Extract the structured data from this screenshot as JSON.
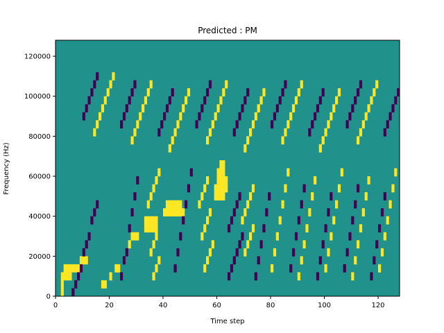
{
  "chart_data": {
    "type": "heatmap",
    "title": "Predicted : PM",
    "xlabel": "Time step",
    "ylabel": "Frequency (Hz)",
    "xlim": [
      0,
      128
    ],
    "ylim": [
      0,
      128000
    ],
    "x_ticks": [
      0,
      20,
      40,
      60,
      80,
      100,
      120
    ],
    "y_ticks": [
      0,
      20000,
      40000,
      60000,
      80000,
      100000,
      120000
    ],
    "x_tick_labels": [
      "0",
      "20",
      "40",
      "60",
      "80",
      "100",
      "120"
    ],
    "y_tick_labels": [
      "0",
      "20000",
      "40000",
      "60000",
      "80000",
      "100000",
      "120000"
    ],
    "rows": 32,
    "cols": 128,
    "colormap": "viridis",
    "colors": {
      "background": "#21918c",
      "high": "#fde725",
      "low": "#440154"
    },
    "high_cells": [
      [
        2,
        0
      ],
      [
        2,
        1
      ],
      [
        2,
        2
      ],
      [
        3,
        2
      ],
      [
        4,
        2
      ],
      [
        5,
        2
      ],
      [
        3,
        3
      ],
      [
        4,
        3
      ],
      [
        5,
        3
      ],
      [
        6,
        3
      ],
      [
        7,
        3
      ],
      [
        8,
        3
      ],
      [
        9,
        4
      ],
      [
        10,
        4
      ],
      [
        11,
        4
      ],
      [
        17,
        1
      ],
      [
        18,
        1
      ],
      [
        20,
        2
      ],
      [
        22,
        3
      ],
      [
        23,
        3
      ],
      [
        27,
        6
      ],
      [
        28,
        7
      ],
      [
        29,
        7
      ],
      [
        30,
        7
      ],
      [
        33,
        8
      ],
      [
        34,
        8
      ],
      [
        35,
        8
      ],
      [
        36,
        8
      ],
      [
        37,
        8
      ],
      [
        33,
        9
      ],
      [
        34,
        9
      ],
      [
        35,
        9
      ],
      [
        36,
        9
      ],
      [
        37,
        9
      ],
      [
        40,
        10
      ],
      [
        41,
        10
      ],
      [
        42,
        10
      ],
      [
        43,
        10
      ],
      [
        44,
        10
      ],
      [
        45,
        10
      ],
      [
        46,
        10
      ],
      [
        47,
        10
      ],
      [
        41,
        11
      ],
      [
        42,
        11
      ],
      [
        43,
        11
      ],
      [
        44,
        11
      ],
      [
        45,
        11
      ],
      [
        46,
        11
      ],
      [
        59,
        12
      ],
      [
        60,
        12
      ],
      [
        61,
        12
      ],
      [
        62,
        12
      ],
      [
        59,
        13
      ],
      [
        60,
        13
      ],
      [
        61,
        13
      ],
      [
        62,
        13
      ],
      [
        63,
        13
      ],
      [
        60,
        14
      ],
      [
        61,
        14
      ],
      [
        62,
        14
      ],
      [
        63,
        14
      ],
      [
        60,
        15
      ],
      [
        61,
        15
      ],
      [
        62,
        15
      ],
      [
        61,
        16
      ],
      [
        62,
        16
      ],
      [
        55,
        3
      ],
      [
        56,
        4
      ],
      [
        57,
        5
      ],
      [
        58,
        6
      ],
      [
        54,
        7
      ],
      [
        55,
        8
      ],
      [
        56,
        9
      ],
      [
        57,
        10
      ],
      [
        53,
        11
      ],
      [
        54,
        12
      ],
      [
        55,
        13
      ],
      [
        56,
        14
      ],
      [
        36,
        2
      ],
      [
        37,
        3
      ],
      [
        38,
        4
      ],
      [
        35,
        5
      ],
      [
        36,
        6
      ],
      [
        37,
        7
      ],
      [
        34,
        11
      ],
      [
        35,
        12
      ],
      [
        36,
        13
      ],
      [
        37,
        14
      ],
      [
        38,
        15
      ],
      [
        70,
        5
      ],
      [
        71,
        6
      ],
      [
        72,
        7
      ],
      [
        73,
        8
      ],
      [
        69,
        9
      ],
      [
        70,
        10
      ],
      [
        71,
        11
      ],
      [
        72,
        12
      ],
      [
        73,
        13
      ],
      [
        80,
        3
      ],
      [
        81,
        5
      ],
      [
        82,
        7
      ],
      [
        83,
        9
      ],
      [
        84,
        11
      ],
      [
        85,
        13
      ],
      [
        86,
        15
      ],
      [
        90,
        2
      ],
      [
        91,
        4
      ],
      [
        92,
        6
      ],
      [
        93,
        8
      ],
      [
        94,
        10
      ],
      [
        95,
        12
      ],
      [
        96,
        14
      ],
      [
        100,
        3
      ],
      [
        101,
        5
      ],
      [
        102,
        7
      ],
      [
        103,
        9
      ],
      [
        104,
        11
      ],
      [
        105,
        13
      ],
      [
        106,
        15
      ],
      [
        110,
        2
      ],
      [
        111,
        4
      ],
      [
        112,
        6
      ],
      [
        113,
        8
      ],
      [
        114,
        10
      ],
      [
        115,
        12
      ],
      [
        116,
        14
      ],
      [
        120,
        3
      ],
      [
        121,
        5
      ],
      [
        122,
        7
      ],
      [
        123,
        9
      ],
      [
        124,
        11
      ],
      [
        125,
        13
      ],
      [
        126,
        15
      ],
      [
        14,
        20
      ],
      [
        15,
        21
      ],
      [
        16,
        22
      ],
      [
        17,
        23
      ],
      [
        18,
        24
      ],
      [
        19,
        25
      ],
      [
        20,
        26
      ],
      [
        21,
        27
      ],
      [
        28,
        19
      ],
      [
        29,
        20
      ],
      [
        30,
        21
      ],
      [
        31,
        22
      ],
      [
        32,
        23
      ],
      [
        33,
        24
      ],
      [
        34,
        25
      ],
      [
        35,
        26
      ],
      [
        42,
        18
      ],
      [
        43,
        19
      ],
      [
        44,
        20
      ],
      [
        45,
        21
      ],
      [
        46,
        22
      ],
      [
        47,
        23
      ],
      [
        48,
        24
      ],
      [
        49,
        25
      ],
      [
        56,
        19
      ],
      [
        57,
        20
      ],
      [
        58,
        21
      ],
      [
        59,
        22
      ],
      [
        60,
        23
      ],
      [
        61,
        24
      ],
      [
        62,
        25
      ],
      [
        63,
        26
      ],
      [
        70,
        18
      ],
      [
        71,
        19
      ],
      [
        72,
        20
      ],
      [
        73,
        21
      ],
      [
        74,
        22
      ],
      [
        75,
        23
      ],
      [
        76,
        24
      ],
      [
        77,
        25
      ],
      [
        84,
        19
      ],
      [
        85,
        20
      ],
      [
        86,
        21
      ],
      [
        87,
        22
      ],
      [
        88,
        23
      ],
      [
        89,
        24
      ],
      [
        90,
        25
      ],
      [
        91,
        26
      ],
      [
        98,
        18
      ],
      [
        99,
        19
      ],
      [
        100,
        20
      ],
      [
        101,
        21
      ],
      [
        102,
        22
      ],
      [
        103,
        23
      ],
      [
        104,
        24
      ],
      [
        105,
        25
      ],
      [
        112,
        19
      ],
      [
        113,
        20
      ],
      [
        114,
        21
      ],
      [
        115,
        22
      ],
      [
        116,
        23
      ],
      [
        117,
        24
      ],
      [
        118,
        25
      ],
      [
        119,
        26
      ]
    ],
    "low_cells": [
      [
        6,
        0
      ],
      [
        7,
        1
      ],
      [
        8,
        2
      ],
      [
        9,
        3
      ],
      [
        10,
        5
      ],
      [
        11,
        6
      ],
      [
        12,
        7
      ],
      [
        13,
        9
      ],
      [
        14,
        10
      ],
      [
        15,
        11
      ],
      [
        24,
        2
      ],
      [
        25,
        4
      ],
      [
        26,
        5
      ],
      [
        27,
        8
      ],
      [
        28,
        10
      ],
      [
        29,
        12
      ],
      [
        30,
        14
      ],
      [
        44,
        3
      ],
      [
        45,
        5
      ],
      [
        46,
        7
      ],
      [
        47,
        9
      ],
      [
        48,
        11
      ],
      [
        49,
        13
      ],
      [
        50,
        15
      ],
      [
        64,
        2
      ],
      [
        65,
        3
      ],
      [
        66,
        4
      ],
      [
        67,
        5
      ],
      [
        68,
        6
      ],
      [
        69,
        7
      ],
      [
        64,
        8
      ],
      [
        65,
        9
      ],
      [
        66,
        10
      ],
      [
        67,
        11
      ],
      [
        68,
        12
      ],
      [
        74,
        2
      ],
      [
        75,
        4
      ],
      [
        76,
        6
      ],
      [
        77,
        8
      ],
      [
        78,
        10
      ],
      [
        79,
        12
      ],
      [
        87,
        3
      ],
      [
        88,
        5
      ],
      [
        89,
        7
      ],
      [
        90,
        9
      ],
      [
        91,
        11
      ],
      [
        92,
        13
      ],
      [
        97,
        2
      ],
      [
        98,
        4
      ],
      [
        99,
        6
      ],
      [
        100,
        8
      ],
      [
        101,
        10
      ],
      [
        102,
        12
      ],
      [
        107,
        3
      ],
      [
        108,
        5
      ],
      [
        109,
        7
      ],
      [
        110,
        9
      ],
      [
        111,
        11
      ],
      [
        112,
        13
      ],
      [
        117,
        2
      ],
      [
        118,
        4
      ],
      [
        119,
        6
      ],
      [
        120,
        8
      ],
      [
        121,
        10
      ],
      [
        122,
        12
      ],
      [
        10,
        22
      ],
      [
        11,
        23
      ],
      [
        12,
        24
      ],
      [
        13,
        25
      ],
      [
        14,
        26
      ],
      [
        15,
        27
      ],
      [
        24,
        21
      ],
      [
        25,
        22
      ],
      [
        26,
        23
      ],
      [
        27,
        24
      ],
      [
        28,
        25
      ],
      [
        29,
        26
      ],
      [
        38,
        20
      ],
      [
        39,
        21
      ],
      [
        40,
        22
      ],
      [
        41,
        23
      ],
      [
        42,
        24
      ],
      [
        43,
        25
      ],
      [
        52,
        21
      ],
      [
        53,
        22
      ],
      [
        54,
        23
      ],
      [
        55,
        24
      ],
      [
        56,
        25
      ],
      [
        57,
        26
      ],
      [
        66,
        20
      ],
      [
        67,
        21
      ],
      [
        68,
        22
      ],
      [
        69,
        23
      ],
      [
        70,
        24
      ],
      [
        71,
        25
      ],
      [
        80,
        21
      ],
      [
        81,
        22
      ],
      [
        82,
        23
      ],
      [
        83,
        24
      ],
      [
        84,
        25
      ],
      [
        85,
        26
      ],
      [
        94,
        20
      ],
      [
        95,
        21
      ],
      [
        96,
        22
      ],
      [
        97,
        23
      ],
      [
        98,
        24
      ],
      [
        99,
        25
      ],
      [
        108,
        21
      ],
      [
        109,
        22
      ],
      [
        110,
        23
      ],
      [
        111,
        24
      ],
      [
        112,
        25
      ],
      [
        113,
        26
      ],
      [
        122,
        20
      ],
      [
        123,
        21
      ],
      [
        124,
        22
      ],
      [
        125,
        23
      ],
      [
        126,
        24
      ],
      [
        127,
        25
      ]
    ]
  }
}
